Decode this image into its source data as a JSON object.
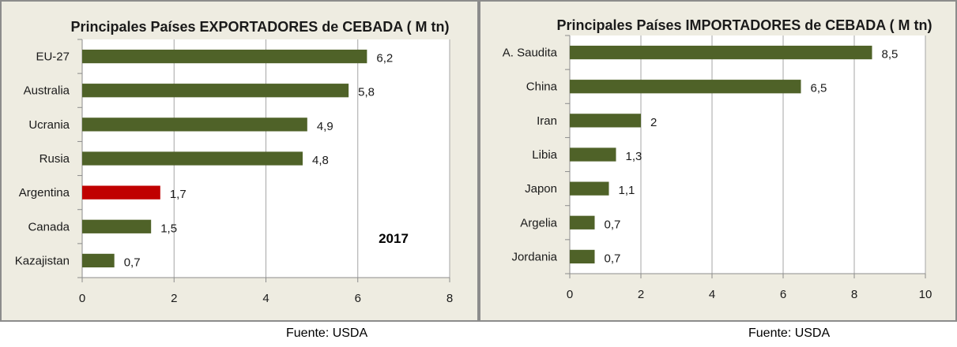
{
  "chart_data": [
    {
      "type": "bar",
      "orientation": "horizontal",
      "title": "Principales Países EXPORTADORES de CEBADA ( M tn)",
      "categories": [
        "EU-27",
        "Australia",
        "Ucrania",
        "Rusia",
        "Argentina",
        "Canada",
        "Kazajistan"
      ],
      "values": [
        6.2,
        5.8,
        4.9,
        4.8,
        1.7,
        1.5,
        0.7
      ],
      "data_labels": [
        "6,2",
        "5,8",
        "4,9",
        "4,8",
        "1,7",
        "1,5",
        "0,7"
      ],
      "highlight": "Argentina",
      "xlim": [
        0,
        8
      ],
      "xticks": [
        0,
        2,
        4,
        6,
        8
      ],
      "grid": true,
      "annotation": "2017",
      "colors": {
        "bar": "#4F6228",
        "highlight": "#C00000",
        "background": "#EEECE1",
        "plot": "#FFFFFF",
        "grid": "#A6A6A6"
      },
      "source": "Fuente: USDA"
    },
    {
      "type": "bar",
      "orientation": "horizontal",
      "title": "Principales Países IMPORTADORES de CEBADA ( M tn)",
      "categories": [
        "A. Saudita",
        "China",
        "Iran",
        "Libia",
        "Japon",
        "Argelia",
        "Jordania"
      ],
      "values": [
        8.5,
        6.5,
        2,
        1.3,
        1.1,
        0.7,
        0.7
      ],
      "data_labels": [
        "8,5",
        "6,5",
        "2",
        "1,3",
        "1,1",
        "0,7",
        "0,7"
      ],
      "xlim": [
        0,
        10
      ],
      "xticks": [
        0,
        2,
        4,
        6,
        8,
        10
      ],
      "grid": true,
      "colors": {
        "bar": "#4F6228",
        "background": "#EEECE1",
        "plot": "#FFFFFF",
        "grid": "#A6A6A6"
      },
      "source": "Fuente: USDA"
    }
  ]
}
